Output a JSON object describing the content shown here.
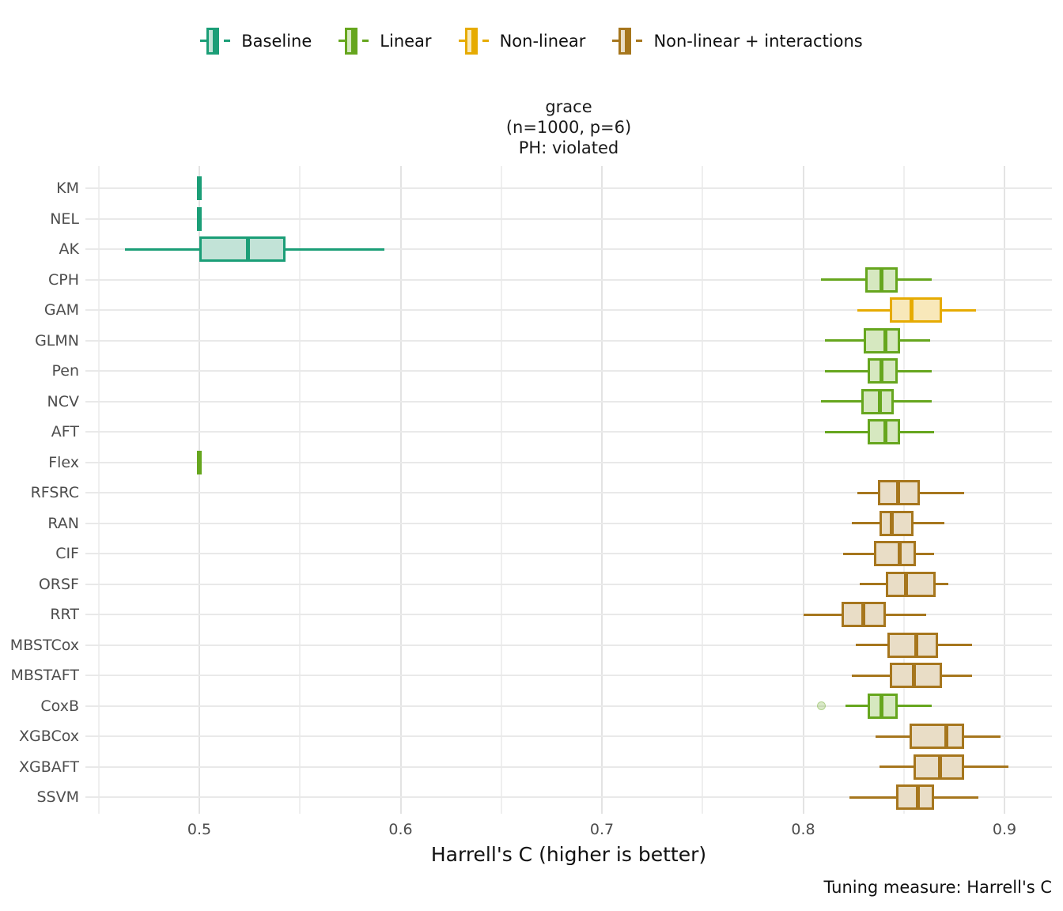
{
  "title": {
    "line1": "grace",
    "line2": "(n=1000, p=6)",
    "line3": "PH: violated"
  },
  "caption": "Tuning measure: Harrell's C",
  "x_axis": {
    "label": "Harrell's C (higher is better)",
    "tick_labels": [
      "0.5",
      "0.6",
      "0.7",
      "0.8",
      "0.9"
    ]
  },
  "legend": {
    "items": [
      {
        "label": "Baseline",
        "group": "baseline"
      },
      {
        "label": "Linear",
        "group": "linear"
      },
      {
        "label": "Non-linear",
        "group": "nonlinear"
      },
      {
        "label": "Non-linear + interactions",
        "group": "nonlinear_interactions"
      }
    ]
  },
  "groups": {
    "baseline": {
      "stroke": "#1B9E77",
      "fill": "#C2E3D7"
    },
    "linear": {
      "stroke": "#66A61E",
      "fill": "#D6E8C0"
    },
    "nonlinear": {
      "stroke": "#E6AB02",
      "fill": "#F8E8BA"
    },
    "nonlinear_interactions": {
      "stroke": "#A6761D",
      "fill": "#E9DDC6"
    }
  },
  "chart_data": {
    "type": "boxplot",
    "orientation": "horizontal",
    "title": "grace (n=1000, p=6) PH: violated",
    "xlabel": "Harrell's C (higher is better)",
    "xlim": [
      0.443,
      0.924
    ],
    "x_major_ticks": [
      0.5,
      0.6,
      0.7,
      0.8,
      0.9
    ],
    "x_minor_ticks": [
      0.45,
      0.55,
      0.65,
      0.75,
      0.85
    ],
    "grid": true,
    "legend_position": "top",
    "rows": [
      {
        "model": "KM",
        "group": "baseline",
        "whisker_low": 0.5,
        "q1": 0.5,
        "median": 0.5,
        "q3": 0.5,
        "whisker_high": 0.5,
        "outliers": []
      },
      {
        "model": "NEL",
        "group": "baseline",
        "whisker_low": 0.5,
        "q1": 0.5,
        "median": 0.5,
        "q3": 0.5,
        "whisker_high": 0.5,
        "outliers": []
      },
      {
        "model": "AK",
        "group": "baseline",
        "whisker_low": 0.463,
        "q1": 0.5,
        "median": 0.524,
        "q3": 0.543,
        "whisker_high": 0.592,
        "outliers": []
      },
      {
        "model": "CPH",
        "group": "linear",
        "whisker_low": 0.809,
        "q1": 0.831,
        "median": 0.839,
        "q3": 0.847,
        "whisker_high": 0.864,
        "outliers": []
      },
      {
        "model": "GAM",
        "group": "nonlinear",
        "whisker_low": 0.827,
        "q1": 0.843,
        "median": 0.854,
        "q3": 0.869,
        "whisker_high": 0.886,
        "outliers": []
      },
      {
        "model": "GLMN",
        "group": "linear",
        "whisker_low": 0.811,
        "q1": 0.83,
        "median": 0.841,
        "q3": 0.848,
        "whisker_high": 0.863,
        "outliers": []
      },
      {
        "model": "Pen",
        "group": "linear",
        "whisker_low": 0.811,
        "q1": 0.832,
        "median": 0.839,
        "q3": 0.847,
        "whisker_high": 0.864,
        "outliers": []
      },
      {
        "model": "NCV",
        "group": "linear",
        "whisker_low": 0.809,
        "q1": 0.829,
        "median": 0.838,
        "q3": 0.845,
        "whisker_high": 0.864,
        "outliers": []
      },
      {
        "model": "AFT",
        "group": "linear",
        "whisker_low": 0.811,
        "q1": 0.832,
        "median": 0.841,
        "q3": 0.848,
        "whisker_high": 0.865,
        "outliers": []
      },
      {
        "model": "Flex",
        "group": "linear",
        "whisker_low": 0.5,
        "q1": 0.5,
        "median": 0.5,
        "q3": 0.5,
        "whisker_high": 0.5,
        "outliers": []
      },
      {
        "model": "RFSRC",
        "group": "nonlinear_interactions",
        "whisker_low": 0.827,
        "q1": 0.837,
        "median": 0.847,
        "q3": 0.858,
        "whisker_high": 0.88,
        "outliers": []
      },
      {
        "model": "RAN",
        "group": "nonlinear_interactions",
        "whisker_low": 0.824,
        "q1": 0.838,
        "median": 0.844,
        "q3": 0.855,
        "whisker_high": 0.87,
        "outliers": []
      },
      {
        "model": "CIF",
        "group": "nonlinear_interactions",
        "whisker_low": 0.82,
        "q1": 0.835,
        "median": 0.848,
        "q3": 0.856,
        "whisker_high": 0.865,
        "outliers": []
      },
      {
        "model": "ORSF",
        "group": "nonlinear_interactions",
        "whisker_low": 0.828,
        "q1": 0.841,
        "median": 0.851,
        "q3": 0.866,
        "whisker_high": 0.872,
        "outliers": []
      },
      {
        "model": "RRT",
        "group": "nonlinear_interactions",
        "whisker_low": 0.8,
        "q1": 0.819,
        "median": 0.83,
        "q3": 0.841,
        "whisker_high": 0.861,
        "outliers": []
      },
      {
        "model": "MBSTCox",
        "group": "nonlinear_interactions",
        "whisker_low": 0.826,
        "q1": 0.842,
        "median": 0.856,
        "q3": 0.867,
        "whisker_high": 0.884,
        "outliers": []
      },
      {
        "model": "MBSTAFT",
        "group": "nonlinear_interactions",
        "whisker_low": 0.824,
        "q1": 0.843,
        "median": 0.855,
        "q3": 0.869,
        "whisker_high": 0.884,
        "outliers": []
      },
      {
        "model": "CoxB",
        "group": "linear",
        "whisker_low": 0.821,
        "q1": 0.832,
        "median": 0.839,
        "q3": 0.847,
        "whisker_high": 0.864,
        "outliers": [
          0.809
        ]
      },
      {
        "model": "XGBCox",
        "group": "nonlinear_interactions",
        "whisker_low": 0.836,
        "q1": 0.853,
        "median": 0.871,
        "q3": 0.88,
        "whisker_high": 0.898,
        "outliers": []
      },
      {
        "model": "XGBAFT",
        "group": "nonlinear_interactions",
        "whisker_low": 0.838,
        "q1": 0.855,
        "median": 0.868,
        "q3": 0.88,
        "whisker_high": 0.902,
        "outliers": []
      },
      {
        "model": "SSVM",
        "group": "nonlinear_interactions",
        "whisker_low": 0.823,
        "q1": 0.846,
        "median": 0.857,
        "q3": 0.865,
        "whisker_high": 0.887,
        "outliers": []
      }
    ]
  }
}
